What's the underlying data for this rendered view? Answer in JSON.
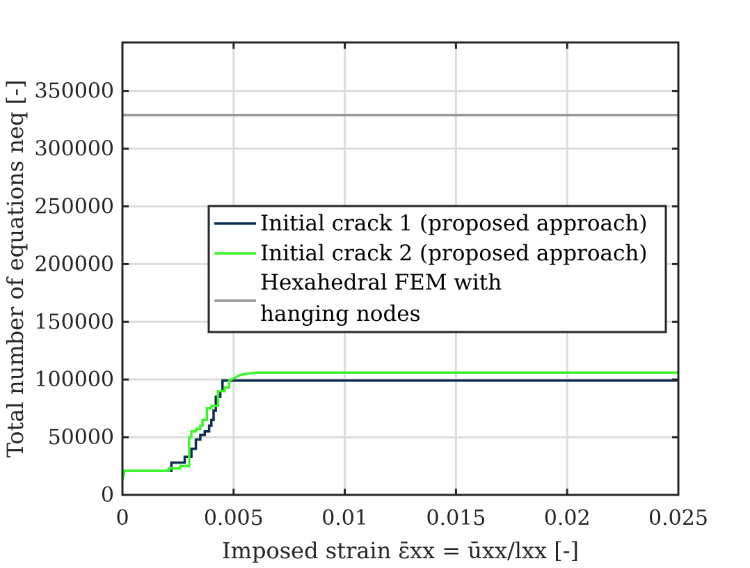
{
  "chart_data": {
    "type": "line",
    "title": "",
    "xlabel": "Imposed strain ε̄xx = ūxx/lxx [-]",
    "ylabel": "Total number of equations neq [-]",
    "xlim": [
      0,
      0.025
    ],
    "ylim": [
      0,
      392000
    ],
    "xticks": [
      0,
      0.005,
      0.01,
      0.015,
      0.02,
      0.025
    ],
    "xtick_labels": [
      "0",
      "0.005",
      "0.01",
      "0.015",
      "0.02",
      "0.025"
    ],
    "yticks": [
      0,
      50000,
      100000,
      150000,
      200000,
      250000,
      300000,
      350000
    ],
    "ytick_labels": [
      "0",
      "50000",
      "100000",
      "150000",
      "200000",
      "250000",
      "300000",
      "350000"
    ],
    "grid": true,
    "legend_position": "center",
    "series": [
      {
        "name": "Initial crack 1 (proposed approach)",
        "color": "#0d2e52",
        "x": [
          0,
          0.0022,
          0.0022,
          0.0028,
          0.0028,
          0.0031,
          0.0031,
          0.0033,
          0.0033,
          0.0035,
          0.0035,
          0.0037,
          0.0037,
          0.0039,
          0.0039,
          0.004,
          0.004,
          0.0041,
          0.0041,
          0.0042,
          0.0042,
          0.0044,
          0.0044,
          0.0045,
          0.0045,
          0.025
        ],
        "y": [
          21000,
          21000,
          28000,
          28000,
          33000,
          33000,
          40000,
          40000,
          48000,
          48000,
          52000,
          52000,
          55000,
          55000,
          60000,
          60000,
          65000,
          65000,
          73000,
          73000,
          85000,
          85000,
          90000,
          90000,
          99000,
          99000
        ]
      },
      {
        "name": "Initial crack 2 (proposed approach)",
        "color": "#3df72b",
        "x": [
          0,
          0.0001,
          0.0021,
          0.0021,
          0.0026,
          0.0026,
          0.003,
          0.003,
          0.0031,
          0.0031,
          0.0033,
          0.0033,
          0.0035,
          0.0035,
          0.0036,
          0.0036,
          0.0038,
          0.0038,
          0.004,
          0.004,
          0.0043,
          0.0043,
          0.0046,
          0.0046,
          0.0048,
          0.0048,
          0.0051,
          0.0053,
          0.0056,
          0.006,
          0.025
        ],
        "y": [
          13000,
          21000,
          21000,
          23000,
          23000,
          25000,
          25000,
          50000,
          50000,
          55000,
          55000,
          57000,
          57000,
          60000,
          60000,
          65000,
          65000,
          75000,
          75000,
          77000,
          77000,
          90000,
          90000,
          93000,
          93000,
          99000,
          102000,
          104000,
          105000,
          106000,
          106000
        ]
      },
      {
        "name": "Hexahedral FEM with hanging nodes",
        "legend_lines": [
          "Hexahedral FEM with",
          "hanging nodes"
        ],
        "color": "#999999",
        "x": [
          0,
          0.025
        ],
        "y": [
          329000,
          329000
        ]
      }
    ]
  }
}
